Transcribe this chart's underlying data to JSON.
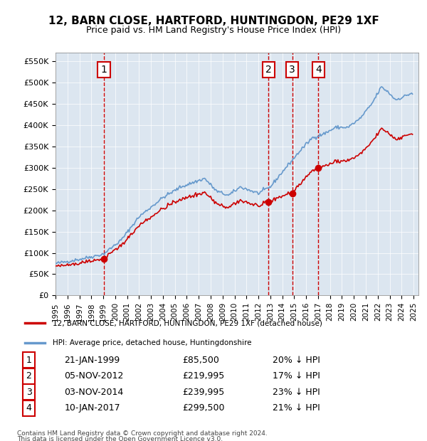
{
  "title": "12, BARN CLOSE, HARTFORD, HUNTINGDON, PE29 1XF",
  "subtitle": "Price paid vs. HM Land Registry's House Price Index (HPI)",
  "legend_property": "12, BARN CLOSE, HARTFORD, HUNTINGDON, PE29 1XF (detached house)",
  "legend_hpi": "HPI: Average price, detached house, Huntingdonshire",
  "footnote1": "Contains HM Land Registry data © Crown copyright and database right 2024.",
  "footnote2": "This data is licensed under the Open Government Licence v3.0.",
  "sales": [
    {
      "num": 1,
      "date": "1999-01-21",
      "price": 85500,
      "pct": "20%",
      "label_date": "21-JAN-1999",
      "label_price": "£85,500"
    },
    {
      "num": 2,
      "date": "2012-11-05",
      "price": 219995,
      "pct": "17%",
      "label_date": "05-NOV-2012",
      "label_price": "£219,995"
    },
    {
      "num": 3,
      "date": "2014-11-03",
      "price": 239995,
      "pct": "23%",
      "label_date": "03-NOV-2014",
      "label_price": "£239,995"
    },
    {
      "num": 4,
      "date": "2017-01-10",
      "price": 299500,
      "pct": "21%",
      "label_date": "10-JAN-2017",
      "label_price": "£299,500"
    }
  ],
  "property_color": "#cc0000",
  "hpi_color": "#6699cc",
  "vline_color": "#cc0000",
  "dot_color": "#cc0000",
  "background_color": "#dce6f0",
  "ylim": [
    0,
    570000
  ],
  "yticks": [
    0,
    50000,
    100000,
    150000,
    200000,
    250000,
    300000,
    350000,
    400000,
    450000,
    500000,
    550000
  ],
  "xlabel_start_year": 1995,
  "xlabel_end_year": 2025
}
